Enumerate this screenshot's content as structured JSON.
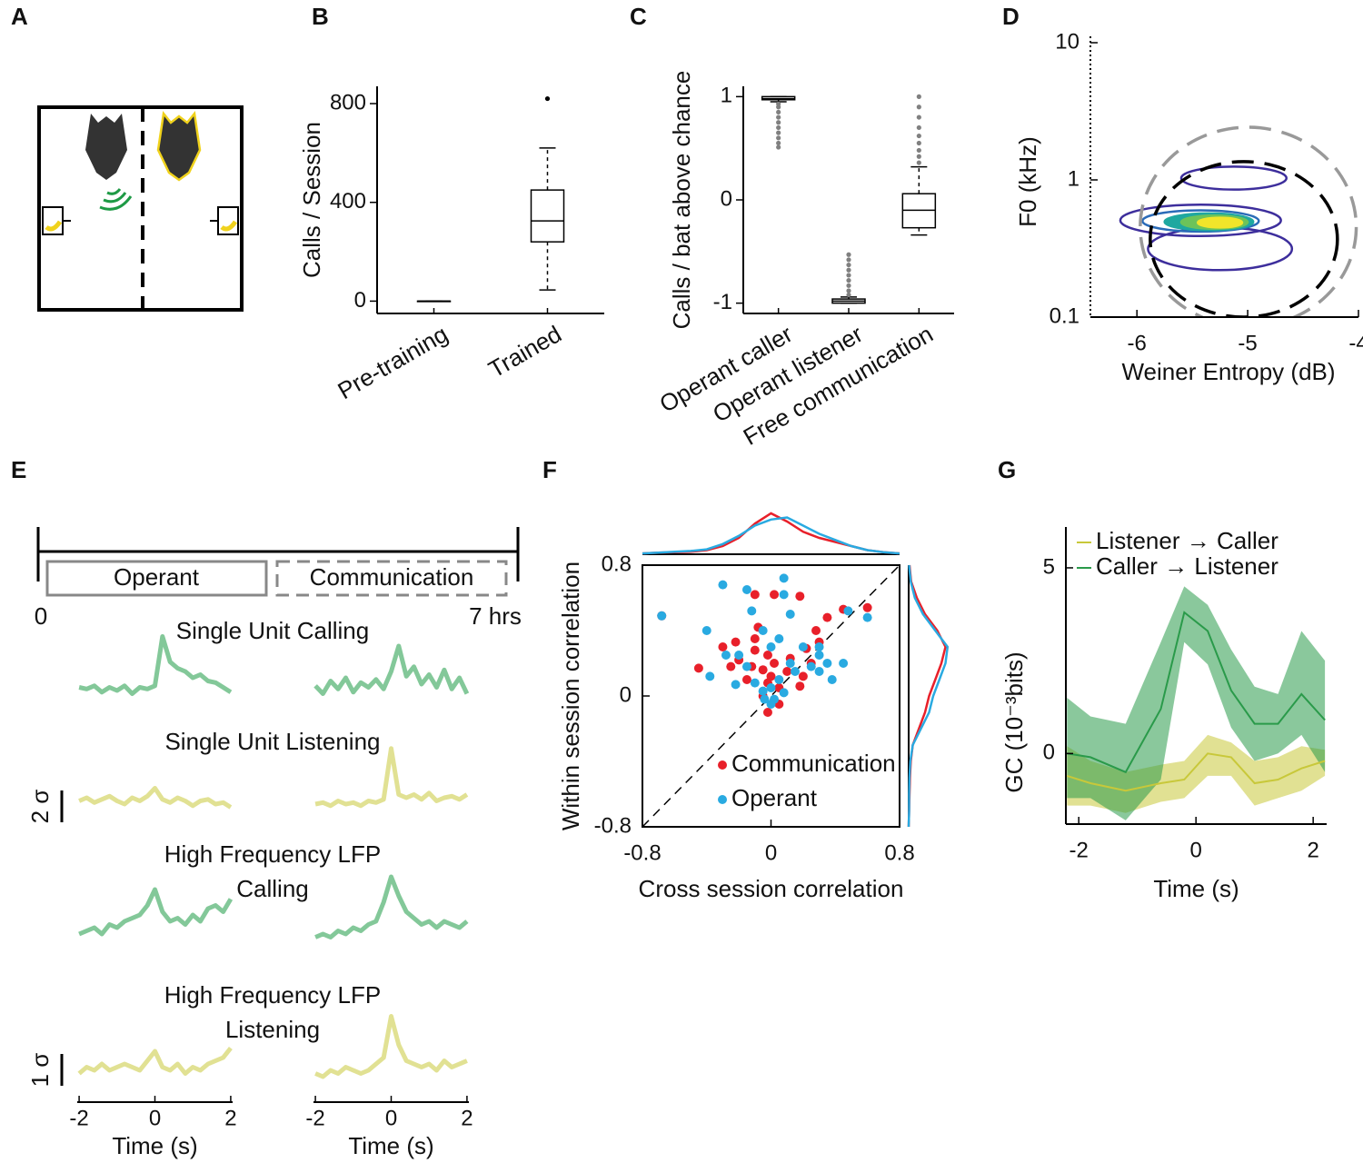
{
  "panel_labels": [
    "A",
    "B",
    "C",
    "D",
    "E",
    "F",
    "G"
  ],
  "chart_data": [
    {
      "type": "box",
      "ylabel": "Calls / Session",
      "categories": [
        "Pre-training",
        "Trained"
      ],
      "boxes": [
        {
          "min": 0,
          "q1": 0,
          "median": 0,
          "q3": 0,
          "max": 0,
          "outliers": []
        },
        {
          "min": 45,
          "q1": 240,
          "median": 325,
          "q3": 450,
          "max": 620,
          "outliers": [
            820
          ]
        }
      ],
      "ylim": [
        -50,
        870
      ],
      "yticks": [
        0,
        400,
        800
      ],
      "outlier_color": "#000000"
    },
    {
      "type": "box",
      "ylabel": "Calls / bat above chance",
      "categories": [
        "Operant caller",
        "Operant listener",
        "Free communication"
      ],
      "boxes": [
        {
          "min": 0.95,
          "q1": 0.97,
          "median": 0.98,
          "q3": 1.0,
          "max": 1.0,
          "outliers": [
            0.93,
            0.9,
            0.85,
            0.8,
            0.75,
            0.7,
            0.65,
            0.6,
            0.55,
            0.51
          ]
        },
        {
          "min": -1.0,
          "q1": -1.0,
          "median": -0.98,
          "q3": -0.96,
          "max": -0.94,
          "outliers": [
            -0.92,
            -0.88,
            -0.83,
            -0.78,
            -0.73,
            -0.68,
            -0.63,
            -0.58,
            -0.53
          ]
        },
        {
          "min": -0.34,
          "q1": -0.27,
          "median": -0.1,
          "q3": 0.06,
          "max": 0.32,
          "outliers": [
            0.36,
            0.42,
            0.48,
            0.55,
            0.62,
            0.7,
            0.8,
            0.9,
            1.0
          ]
        }
      ],
      "ylim": [
        -1.1,
        1.1
      ],
      "yticks": [
        -1,
        0,
        1
      ],
      "outlier_color": "#808080"
    },
    {
      "type": "contour",
      "xlabel": "Weiner Entropy (dB)",
      "ylabel": "F0 (kHz)",
      "xlim": [
        -6.42,
        -4
      ],
      "ylim": [
        0.1,
        10
      ],
      "xticks": [
        -6,
        -5,
        -4
      ],
      "yticks": [
        0.1,
        1,
        10
      ],
      "log_y": true,
      "boundaries": [
        {
          "xlim": [
            -5.97,
            -4.02
          ],
          "ylim": [
            0.085,
            2.42
          ],
          "color": "#999999"
        },
        {
          "xlim": [
            -5.88,
            -4.19
          ],
          "ylim": [
            0.1,
            1.36
          ],
          "color": "#000000"
        }
      ],
      "contours": [
        {
          "xlim": [
            -6.15,
            -4.7
          ],
          "ylim": [
            0.39,
            0.66
          ],
          "color": "#3d2e9c",
          "fill": false
        },
        {
          "xlim": [
            -5.9,
            -4.6
          ],
          "ylim": [
            0.22,
            0.45
          ],
          "color": "#3d2e9c",
          "fill": false
        },
        {
          "xlim": [
            -5.6,
            -4.65
          ],
          "ylim": [
            0.85,
            1.25
          ],
          "color": "#3d2e9c",
          "fill": false
        },
        {
          "xlim": [
            -5.95,
            -4.9
          ],
          "ylim": [
            0.42,
            0.6
          ],
          "color": "#2a6bb8",
          "fill": false
        },
        {
          "xlim": [
            -5.75,
            -4.95
          ],
          "ylim": [
            0.43,
            0.57
          ],
          "color": "#1fa8a0",
          "fill": true
        },
        {
          "xlim": [
            -5.6,
            -5.0
          ],
          "ylim": [
            0.44,
            0.55
          ],
          "color": "#6cc35a",
          "fill": true
        },
        {
          "xlim": [
            -5.45,
            -5.05
          ],
          "ylim": [
            0.45,
            0.53
          ],
          "color": "#f1e52a",
          "fill": true
        }
      ]
    },
    {
      "type": "traces",
      "timeline": {
        "segments": [
          "Operant",
          "Communication"
        ],
        "start_label": "0",
        "end_label": "7 hrs"
      },
      "xlabel": "Time (s)",
      "xlim": [
        -2.05,
        2.05
      ],
      "xticks": [
        -2,
        0,
        2
      ],
      "x": [
        -2,
        -1.8,
        -1.6,
        -1.4,
        -1.2,
        -1,
        -0.8,
        -0.6,
        -0.4,
        -0.2,
        0,
        0.2,
        0.4,
        0.6,
        0.8,
        1,
        1.2,
        1.4,
        1.6,
        1.8,
        2
      ],
      "rows": [
        {
          "title_lines": [
            "Single Unit Calling"
          ],
          "color": "#1e9a45",
          "traces": [
            [
              0.2,
              0.1,
              0.3,
              -0.1,
              0.2,
              0,
              0.3,
              -0.2,
              0.2,
              0.1,
              0.3,
              3.4,
              1.8,
              1.4,
              1.2,
              0.8,
              1.0,
              0.6,
              0.5,
              0.2,
              -0.1
            ],
            [
              0.3,
              -0.2,
              0.6,
              0.1,
              0.8,
              -0.1,
              0.5,
              0.2,
              0.7,
              0.1,
              1.2,
              2.8,
              0.9,
              1.5,
              0.4,
              1.0,
              0.2,
              1.3,
              0.1,
              0.8,
              -0.2
            ]
          ]
        },
        {
          "title_lines": [
            "Single Unit Listening"
          ],
          "color": "#c8c83a",
          "traces": [
            [
              0.2,
              0.4,
              0.1,
              0.3,
              0.5,
              0.2,
              0,
              0.4,
              0.2,
              0.5,
              1.0,
              0.3,
              0.1,
              0.4,
              0.2,
              -0.1,
              0.2,
              0.3,
              0,
              0.1,
              -0.2
            ],
            [
              0,
              0.1,
              -0.1,
              0.2,
              0,
              0.1,
              -0.1,
              0.2,
              0.1,
              0.3,
              3.5,
              0.6,
              0.4,
              0.6,
              0.3,
              0.7,
              0.2,
              0.4,
              0.5,
              0.3,
              0.6
            ]
          ]
        },
        {
          "title_lines": [
            "High Frequency LFP",
            "Calling"
          ],
          "color": "#1e9a45",
          "traces": [
            [
              0.2,
              0.3,
              0.4,
              0.2,
              0.5,
              0.4,
              0.6,
              0.7,
              0.8,
              1.1,
              1.6,
              0.9,
              0.6,
              0.7,
              0.5,
              0.8,
              0.6,
              1.0,
              1.1,
              0.9,
              1.3
            ],
            [
              0.1,
              0.2,
              0.1,
              0.3,
              0.2,
              0.4,
              0.3,
              0.5,
              0.6,
              1.2,
              2.0,
              1.4,
              0.9,
              0.7,
              0.5,
              0.6,
              0.4,
              0.6,
              0.5,
              0.4,
              0.6
            ]
          ]
        },
        {
          "title_lines": [
            "High Frequency LFP",
            "Listening"
          ],
          "color": "#c8c83a",
          "traces": [
            [
              0.1,
              0.3,
              0.2,
              0.4,
              0.2,
              0.3,
              0.4,
              0.3,
              0.2,
              0.5,
              0.8,
              0.3,
              0.2,
              0.4,
              0.1,
              0.3,
              0.2,
              0.4,
              0.5,
              0.6,
              0.9
            ],
            [
              0.1,
              0,
              0.2,
              0.1,
              0.3,
              0.2,
              0.1,
              0.2,
              0.4,
              0.6,
              1.9,
              1.0,
              0.5,
              0.4,
              0.3,
              0.4,
              0.2,
              0.5,
              0.3,
              0.4,
              0.5
            ]
          ]
        }
      ],
      "scale_bars": [
        {
          "label": "2 σ",
          "value": 2
        },
        {
          "label": "1 σ",
          "value": 1
        }
      ]
    },
    {
      "type": "scatter",
      "xlabel": "Cross session correlation",
      "ylabel": "Within session correlation",
      "xlim": [
        -0.8,
        0.8
      ],
      "ylim": [
        -0.8,
        0.8
      ],
      "xticks": [
        -0.8,
        0,
        0.8
      ],
      "yticks": [
        -0.8,
        0,
        0.8
      ],
      "legend": "lower right",
      "density_grid": [
        -0.8,
        -0.7,
        -0.6,
        -0.5,
        -0.4,
        -0.3,
        -0.2,
        -0.1,
        0,
        0.1,
        0.2,
        0.3,
        0.4,
        0.5,
        0.6,
        0.7,
        0.8
      ],
      "series": [
        {
          "name": "Communication",
          "color": "#e8202a",
          "x": [
            -0.68,
            0.02,
            0.18,
            -0.1,
            -0.08,
            -0.1,
            -0.22,
            -0.1,
            -0.3,
            -0.02,
            0.12,
            0.28,
            0.35,
            0.45,
            0.6,
            0.3,
            0.22,
            -0.45,
            -0.25,
            -0.12,
            -0.05,
            0.0,
            0.02,
            0.1,
            -0.02,
            0.05,
            -0.05,
            0.05,
            -0.02,
            -0.15,
            0.18,
            0.2,
            0.25,
            -0.2
          ],
          "y": [
            0.49,
            0.62,
            0.61,
            0.62,
            0.42,
            0.35,
            0.33,
            0.28,
            0.3,
            0.25,
            0.23,
            0.4,
            0.48,
            0.53,
            0.54,
            0.33,
            0.29,
            0.17,
            0.18,
            0.18,
            0.16,
            0.12,
            0.2,
            0.15,
            0.08,
            0.05,
            0.0,
            -0.05,
            -0.1,
            0.1,
            0.06,
            0.12,
            0.2,
            0.22
          ],
          "density_x": [
            0.02,
            0.04,
            0.05,
            0.06,
            0.1,
            0.2,
            0.4,
            0.75,
            1.0,
            0.8,
            0.55,
            0.4,
            0.3,
            0.2,
            0.1,
            0.05,
            0.02
          ],
          "density_y": [
            0,
            0.01,
            0.02,
            0.03,
            0.05,
            0.1,
            0.25,
            0.4,
            0.5,
            0.65,
            0.8,
            0.9,
            0.7,
            0.4,
            0.2,
            0.06,
            0.02
          ]
        },
        {
          "name": "Operant",
          "color": "#29aae1",
          "x": [
            -0.68,
            -0.4,
            -0.38,
            -0.3,
            -0.15,
            0.08,
            0.08,
            -0.12,
            -0.05,
            0.0,
            0.05,
            0.12,
            0.2,
            0.3,
            -0.2,
            -0.28,
            -0.15,
            -0.22,
            -0.1,
            0.0,
            0.02,
            0.08,
            -0.05,
            0.12,
            0.15,
            0.25,
            0.3,
            0.35,
            0.45,
            0.48,
            0.6,
            0.38,
            0.0,
            -0.04,
            0.05,
            0.3
          ],
          "y": [
            0.49,
            0.4,
            0.12,
            0.68,
            0.65,
            0.72,
            0.62,
            0.52,
            0.4,
            0.3,
            0.35,
            0.5,
            0.3,
            0.3,
            0.25,
            0.25,
            0.18,
            0.07,
            0.08,
            0.05,
            -0.02,
            0.02,
            0.03,
            0.2,
            0.15,
            0.18,
            0.15,
            0.2,
            0.2,
            0.52,
            0.48,
            0.1,
            -0.05,
            -0.02,
            0.1,
            0.25
          ],
          "density_x": [
            0.02,
            0.04,
            0.06,
            0.08,
            0.12,
            0.25,
            0.45,
            0.7,
            0.85,
            0.9,
            0.7,
            0.5,
            0.35,
            0.2,
            0.1,
            0.05,
            0.02
          ],
          "density_y": [
            0,
            0.01,
            0.01,
            0.02,
            0.04,
            0.1,
            0.3,
            0.5,
            0.6,
            0.75,
            0.9,
            0.95,
            0.65,
            0.35,
            0.15,
            0.05,
            0.01
          ]
        }
      ]
    },
    {
      "type": "line",
      "xlabel": "Time (s)",
      "ylabel": "GC (10⁻³bits)",
      "xlim": [
        -2.22,
        2.23
      ],
      "ylim": [
        -1.9,
        6.1
      ],
      "xticks": [
        -2,
        0,
        2
      ],
      "yticks": [
        0,
        5
      ],
      "legend": "upper left",
      "x": [
        -2.2,
        -1.8,
        -1.2,
        -0.6,
        -0.2,
        0.2,
        0.6,
        1.0,
        1.4,
        1.8,
        2.2
      ],
      "series": [
        {
          "name": "Listener → Caller",
          "color": "#c8c83a",
          "values": [
            -0.6,
            -0.8,
            -1.0,
            -0.8,
            -0.7,
            0.0,
            -0.1,
            -0.8,
            -0.7,
            -0.4,
            -0.2
          ],
          "lower": [
            -1.4,
            -1.4,
            -1.6,
            -1.3,
            -1.2,
            -0.6,
            -0.6,
            -1.4,
            -1.2,
            -1.0,
            -0.6
          ],
          "upper": [
            0.2,
            -0.2,
            -0.5,
            -0.3,
            -0.2,
            0.5,
            0.3,
            -0.2,
            -0.1,
            0.2,
            0.1
          ]
        },
        {
          "name": "Caller → Listener",
          "color": "#2a9a4a",
          "values": [
            0.0,
            -0.1,
            -0.5,
            1.2,
            3.8,
            3.3,
            1.7,
            0.8,
            0.8,
            1.6,
            0.9
          ],
          "lower": [
            -1.2,
            -1.2,
            -1.8,
            -0.7,
            3.0,
            2.4,
            0.7,
            -0.2,
            0.0,
            0.5,
            -0.5
          ],
          "upper": [
            1.5,
            1.0,
            0.8,
            3.0,
            4.5,
            4.0,
            2.8,
            1.8,
            1.6,
            3.3,
            2.5
          ]
        }
      ]
    }
  ]
}
